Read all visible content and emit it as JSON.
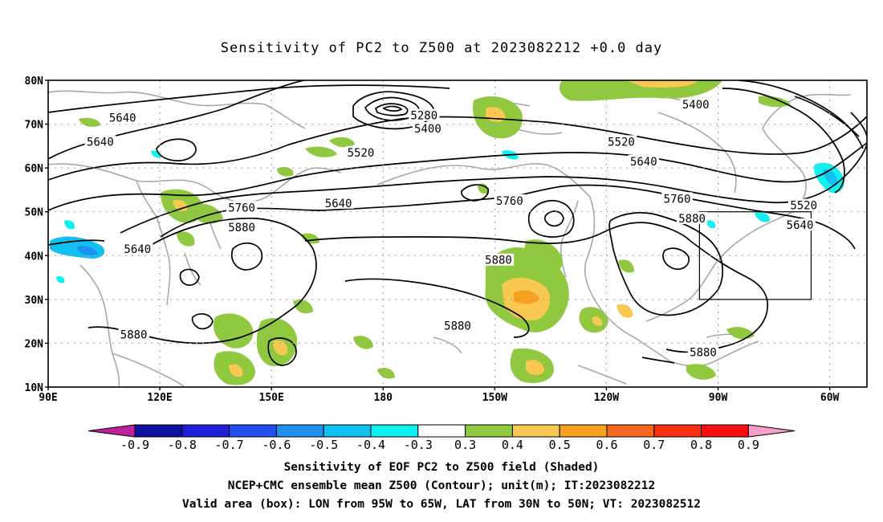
{
  "title": "Sensitivity of PC2 to Z500 at 2023082212 +0.0 day",
  "map": {
    "lat_labels": [
      "80N",
      "70N",
      "60N",
      "50N",
      "40N",
      "30N",
      "20N",
      "10N"
    ],
    "lon_labels": [
      "90E",
      "120E",
      "150E",
      "180",
      "150W",
      "120W",
      "90W",
      "60W"
    ],
    "lat_values": [
      80,
      70,
      60,
      50,
      40,
      30,
      20,
      10
    ],
    "lon_values": [
      90,
      120,
      150,
      180,
      210,
      240,
      270,
      300
    ],
    "lon_range": [
      90,
      310
    ],
    "lat_range": [
      10,
      80
    ],
    "grid": "dotted",
    "valid_box": {
      "lon": [
        265,
        295
      ],
      "lat": [
        30,
        50
      ]
    },
    "contour_labels": [
      {
        "text": "5640",
        "lon": 110,
        "lat": 71.5
      },
      {
        "text": "5640",
        "lon": 104,
        "lat": 66
      },
      {
        "text": "5640",
        "lon": 114,
        "lat": 41.5
      },
      {
        "text": "5280",
        "lon": 191,
        "lat": 72
      },
      {
        "text": "5400",
        "lon": 192,
        "lat": 69
      },
      {
        "text": "5520",
        "lon": 174,
        "lat": 63.5
      },
      {
        "text": "5640",
        "lon": 168,
        "lat": 52
      },
      {
        "text": "5760",
        "lon": 142,
        "lat": 51
      },
      {
        "text": "5880",
        "lon": 142,
        "lat": 46.5
      },
      {
        "text": "5760",
        "lon": 214,
        "lat": 52.5
      },
      {
        "text": "5880",
        "lon": 211,
        "lat": 39
      },
      {
        "text": "5880",
        "lon": 200,
        "lat": 24
      },
      {
        "text": "5880",
        "lon": 113,
        "lat": 22
      },
      {
        "text": "5400",
        "lon": 264,
        "lat": 74.5
      },
      {
        "text": "5520",
        "lon": 244,
        "lat": 66
      },
      {
        "text": "5640",
        "lon": 250,
        "lat": 61.5
      },
      {
        "text": "5760",
        "lon": 259,
        "lat": 53
      },
      {
        "text": "5880",
        "lon": 263,
        "lat": 48.5
      },
      {
        "text": "5520",
        "lon": 293,
        "lat": 51.5
      },
      {
        "text": "5640",
        "lon": 292,
        "lat": 47
      },
      {
        "text": "5880",
        "lon": 266,
        "lat": 18
      }
    ]
  },
  "colorbar": {
    "colors": [
      "#c020a0",
      "#1010a0",
      "#2020d8",
      "#2050f0",
      "#2090f0",
      "#10c0f0",
      "#10f0f0",
      "#ffffff",
      "#90c840",
      "#f8c850",
      "#f8a020",
      "#f86820",
      "#f83010",
      "#f81010",
      "#f8a0c8"
    ],
    "labels": [
      "-0.9",
      "-0.8",
      "-0.7",
      "-0.6",
      "-0.5",
      "-0.4",
      "-0.3",
      "0.3",
      "0.4",
      "0.5",
      "0.6",
      "0.7",
      "0.8",
      "0.9"
    ]
  },
  "captions": {
    "line1": "Sensitivity of EOF PC2 to Z500 field (Shaded)",
    "line2": "NCEP+CMC ensemble mean Z500 (Contour); unit(m); IT:2023082212",
    "line3": "Valid area (box): LON from 95W to 65W, LAT from 30N to 50N; VT: 2023082512"
  }
}
